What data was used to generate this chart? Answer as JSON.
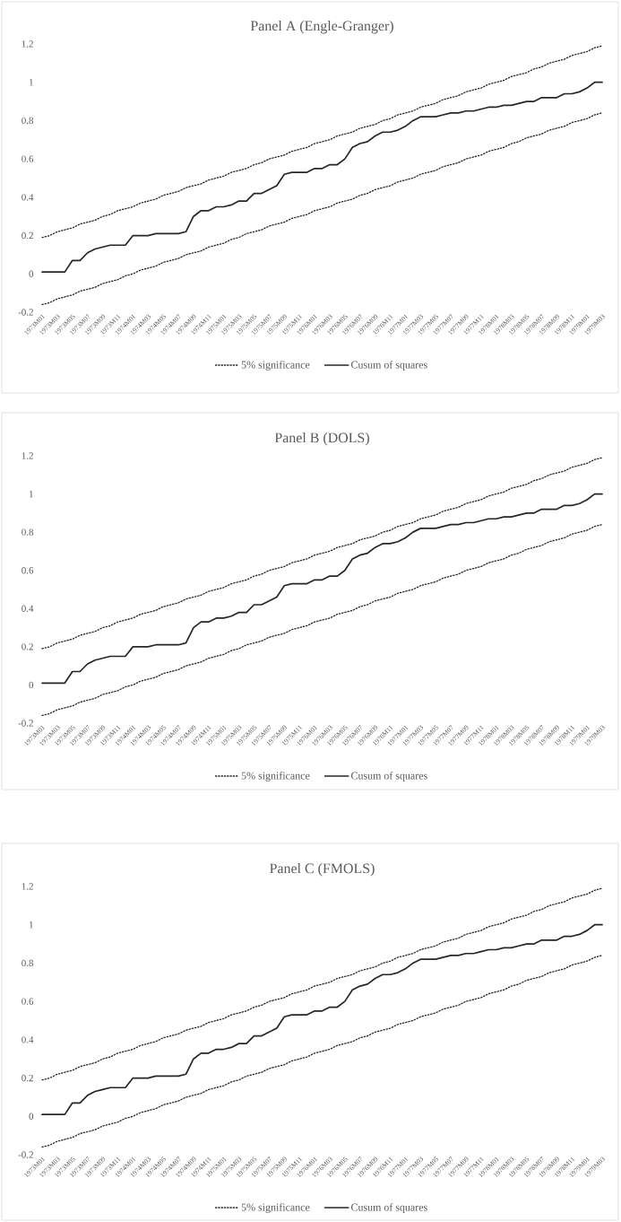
{
  "chart_data": [
    {
      "type": "line",
      "title": "Panel A (Engle-Granger)",
      "categories": [
        "1973M01",
        null,
        "1973M03",
        null,
        "1973M05",
        null,
        "1973M07",
        null,
        "1973M09",
        null,
        "1973M11",
        null,
        "1974M01",
        null,
        "1974M03",
        null,
        "1974M05",
        null,
        "1974M07",
        null,
        "1974M09",
        null,
        "1974M11",
        null,
        "1975M01",
        null,
        "1975M03",
        null,
        "1975M05",
        null,
        "1975M07",
        null,
        "1975M09",
        null,
        "1975M11",
        null,
        "1976M01",
        null,
        "1976M03",
        null,
        "1976M05",
        null,
        "1976M07",
        null,
        "1976M09",
        null,
        "1976M11",
        null,
        "1977M01",
        null,
        "1977M03",
        null,
        "1977M05",
        null,
        "1977M07",
        null,
        "1977M09",
        null,
        "1977M11",
        null,
        "1978M01",
        null,
        "1978M03",
        null,
        "1978M05",
        null,
        "1978M07",
        null,
        "1978M09",
        null,
        "1978M11",
        null,
        "1979M01",
        null,
        "1979M03"
      ],
      "series": [
        {
          "name": "5% significance",
          "color": "#262626",
          "line_style": "dotted",
          "values": [
            0.19,
            0.2,
            0.22,
            0.23,
            0.24,
            0.26,
            0.27,
            0.28,
            0.3,
            0.31,
            0.33,
            0.34,
            0.35,
            0.37,
            0.38,
            0.39,
            0.41,
            0.42,
            0.43,
            0.45,
            0.46,
            0.47,
            0.49,
            0.5,
            0.51,
            0.53,
            0.54,
            0.55,
            0.57,
            0.58,
            0.6,
            0.61,
            0.62,
            0.64,
            0.65,
            0.66,
            0.68,
            0.69,
            0.7,
            0.72,
            0.73,
            0.74,
            0.76,
            0.77,
            0.78,
            0.8,
            0.81,
            0.83,
            0.84,
            0.85,
            0.87,
            0.88,
            0.89,
            0.91,
            0.92,
            0.93,
            0.95,
            0.96,
            0.97,
            0.99,
            1.0,
            1.01,
            1.03,
            1.04,
            1.05,
            1.07,
            1.08,
            1.1,
            1.11,
            1.12,
            1.14,
            1.15,
            1.16,
            1.18,
            1.19
          ]
        },
        {
          "color": "#262626",
          "line_style": "dotted",
          "values": [
            -0.16,
            -0.15,
            -0.13,
            -0.12,
            -0.11,
            -0.09,
            -0.08,
            -0.07,
            -0.05,
            -0.04,
            -0.03,
            -0.01,
            0.0,
            0.02,
            0.03,
            0.04,
            0.06,
            0.07,
            0.08,
            0.1,
            0.11,
            0.12,
            0.14,
            0.15,
            0.16,
            0.18,
            0.19,
            0.21,
            0.22,
            0.23,
            0.25,
            0.26,
            0.27,
            0.29,
            0.3,
            0.31,
            0.33,
            0.34,
            0.35,
            0.37,
            0.38,
            0.39,
            0.41,
            0.42,
            0.44,
            0.45,
            0.46,
            0.48,
            0.49,
            0.5,
            0.52,
            0.53,
            0.54,
            0.56,
            0.57,
            0.58,
            0.6,
            0.61,
            0.62,
            0.64,
            0.65,
            0.66,
            0.68,
            0.69,
            0.71,
            0.72,
            0.73,
            0.75,
            0.76,
            0.77,
            0.79,
            0.8,
            0.81,
            0.83,
            0.84
          ]
        },
        {
          "name": "Cusum of squares",
          "color": "#262626",
          "line_style": "solid",
          "values": [
            0.01,
            0.01,
            0.01,
            0.01,
            0.07,
            0.07,
            0.11,
            0.13,
            0.14,
            0.15,
            0.15,
            0.15,
            0.2,
            0.2,
            0.2,
            0.21,
            0.21,
            0.21,
            0.21,
            0.22,
            0.3,
            0.33,
            0.33,
            0.35,
            0.35,
            0.36,
            0.38,
            0.38,
            0.42,
            0.42,
            0.44,
            0.46,
            0.52,
            0.53,
            0.53,
            0.53,
            0.55,
            0.55,
            0.57,
            0.57,
            0.6,
            0.66,
            0.68,
            0.69,
            0.72,
            0.74,
            0.74,
            0.75,
            0.77,
            0.8,
            0.82,
            0.82,
            0.82,
            0.83,
            0.84,
            0.84,
            0.85,
            0.85,
            0.86,
            0.87,
            0.87,
            0.88,
            0.88,
            0.89,
            0.9,
            0.9,
            0.92,
            0.92,
            0.92,
            0.94,
            0.94,
            0.95,
            0.97,
            1.0,
            1.0
          ]
        }
      ],
      "ylim": [
        -0.2,
        1.2
      ],
      "yticks": [
        -0.2,
        0,
        0.2,
        0.4,
        0.6,
        0.8,
        1,
        1.2
      ],
      "legend": "bottom"
    },
    {
      "type": "line",
      "title": "Panel B (DOLS)",
      "categories": [
        "1973M01",
        null,
        "1973M03",
        null,
        "1973M05",
        null,
        "1973M07",
        null,
        "1973M09",
        null,
        "1973M11",
        null,
        "1974M01",
        null,
        "1974M03",
        null,
        "1974M05",
        null,
        "1974M07",
        null,
        "1974M09",
        null,
        "1974M11",
        null,
        "1975M01",
        null,
        "1975M03",
        null,
        "1975M05",
        null,
        "1975M07",
        null,
        "1975M09",
        null,
        "1975M11",
        null,
        "1976M01",
        null,
        "1976M03",
        null,
        "1976M05",
        null,
        "1976M07",
        null,
        "1976M09",
        null,
        "1976M11",
        null,
        "1977M01",
        null,
        "1977M03",
        null,
        "1977M05",
        null,
        "1977M07",
        null,
        "1977M09",
        null,
        "1977M11",
        null,
        "1978M01",
        null,
        "1978M03",
        null,
        "1978M05",
        null,
        "1978M07",
        null,
        "1978M09",
        null,
        "1978M11",
        null,
        "1979M01",
        null,
        "1979M03"
      ],
      "series": [
        {
          "name": "5% significance",
          "color": "#262626",
          "line_style": "dotted",
          "values": [
            0.19,
            0.2,
            0.22,
            0.23,
            0.24,
            0.26,
            0.27,
            0.28,
            0.3,
            0.31,
            0.33,
            0.34,
            0.35,
            0.37,
            0.38,
            0.39,
            0.41,
            0.42,
            0.43,
            0.45,
            0.46,
            0.47,
            0.49,
            0.5,
            0.51,
            0.53,
            0.54,
            0.55,
            0.57,
            0.58,
            0.6,
            0.61,
            0.62,
            0.64,
            0.65,
            0.66,
            0.68,
            0.69,
            0.7,
            0.72,
            0.73,
            0.74,
            0.76,
            0.77,
            0.78,
            0.8,
            0.81,
            0.83,
            0.84,
            0.85,
            0.87,
            0.88,
            0.89,
            0.91,
            0.92,
            0.93,
            0.95,
            0.96,
            0.97,
            0.99,
            1.0,
            1.01,
            1.03,
            1.04,
            1.05,
            1.07,
            1.08,
            1.1,
            1.11,
            1.12,
            1.14,
            1.15,
            1.16,
            1.18,
            1.19
          ]
        },
        {
          "color": "#262626",
          "line_style": "dotted",
          "values": [
            -0.16,
            -0.15,
            -0.13,
            -0.12,
            -0.11,
            -0.09,
            -0.08,
            -0.07,
            -0.05,
            -0.04,
            -0.03,
            -0.01,
            0.0,
            0.02,
            0.03,
            0.04,
            0.06,
            0.07,
            0.08,
            0.1,
            0.11,
            0.12,
            0.14,
            0.15,
            0.16,
            0.18,
            0.19,
            0.21,
            0.22,
            0.23,
            0.25,
            0.26,
            0.27,
            0.29,
            0.3,
            0.31,
            0.33,
            0.34,
            0.35,
            0.37,
            0.38,
            0.39,
            0.41,
            0.42,
            0.44,
            0.45,
            0.46,
            0.48,
            0.49,
            0.5,
            0.52,
            0.53,
            0.54,
            0.56,
            0.57,
            0.58,
            0.6,
            0.61,
            0.62,
            0.64,
            0.65,
            0.66,
            0.68,
            0.69,
            0.71,
            0.72,
            0.73,
            0.75,
            0.76,
            0.77,
            0.79,
            0.8,
            0.81,
            0.83,
            0.84
          ]
        },
        {
          "name": "Cusum of squares",
          "color": "#262626",
          "line_style": "solid",
          "values": [
            0.01,
            0.01,
            0.01,
            0.01,
            0.07,
            0.07,
            0.11,
            0.13,
            0.14,
            0.15,
            0.15,
            0.15,
            0.2,
            0.2,
            0.2,
            0.21,
            0.21,
            0.21,
            0.21,
            0.22,
            0.3,
            0.33,
            0.33,
            0.35,
            0.35,
            0.36,
            0.38,
            0.38,
            0.42,
            0.42,
            0.44,
            0.46,
            0.52,
            0.53,
            0.53,
            0.53,
            0.55,
            0.55,
            0.57,
            0.57,
            0.6,
            0.66,
            0.68,
            0.69,
            0.72,
            0.74,
            0.74,
            0.75,
            0.77,
            0.8,
            0.82,
            0.82,
            0.82,
            0.83,
            0.84,
            0.84,
            0.85,
            0.85,
            0.86,
            0.87,
            0.87,
            0.88,
            0.88,
            0.89,
            0.9,
            0.9,
            0.92,
            0.92,
            0.92,
            0.94,
            0.94,
            0.95,
            0.97,
            1.0,
            1.0
          ]
        }
      ],
      "ylim": [
        -0.2,
        1.2
      ],
      "yticks": [
        -0.2,
        0,
        0.2,
        0.4,
        0.6,
        0.8,
        1,
        1.2
      ],
      "legend": "bottom"
    },
    {
      "type": "line",
      "title": "Panel C (FMOLS)",
      "categories": [
        "1973M01",
        null,
        "1973M03",
        null,
        "1973M05",
        null,
        "1973M07",
        null,
        "1973M09",
        null,
        "1973M11",
        null,
        "1974M01",
        null,
        "1974M03",
        null,
        "1974M05",
        null,
        "1974M07",
        null,
        "1974M09",
        null,
        "1974M11",
        null,
        "1975M01",
        null,
        "1975M03",
        null,
        "1975M05",
        null,
        "1975M07",
        null,
        "1975M09",
        null,
        "1975M11",
        null,
        "1976M01",
        null,
        "1976M03",
        null,
        "1976M05",
        null,
        "1976M07",
        null,
        "1976M09",
        null,
        "1976M11",
        null,
        "1977M01",
        null,
        "1977M03",
        null,
        "1977M05",
        null,
        "1977M07",
        null,
        "1977M09",
        null,
        "1977M11",
        null,
        "1978M01",
        null,
        "1978M03",
        null,
        "1978M05",
        null,
        "1978M07",
        null,
        "1978M09",
        null,
        "1978M11",
        null,
        "1979M01",
        null,
        "1979M03"
      ],
      "series": [
        {
          "name": "5% significance",
          "color": "#262626",
          "line_style": "dotted",
          "values": [
            0.19,
            0.2,
            0.22,
            0.23,
            0.24,
            0.26,
            0.27,
            0.28,
            0.3,
            0.31,
            0.33,
            0.34,
            0.35,
            0.37,
            0.38,
            0.39,
            0.41,
            0.42,
            0.43,
            0.45,
            0.46,
            0.47,
            0.49,
            0.5,
            0.51,
            0.53,
            0.54,
            0.55,
            0.57,
            0.58,
            0.6,
            0.61,
            0.62,
            0.64,
            0.65,
            0.66,
            0.68,
            0.69,
            0.7,
            0.72,
            0.73,
            0.74,
            0.76,
            0.77,
            0.78,
            0.8,
            0.81,
            0.83,
            0.84,
            0.85,
            0.87,
            0.88,
            0.89,
            0.91,
            0.92,
            0.93,
            0.95,
            0.96,
            0.97,
            0.99,
            1.0,
            1.01,
            1.03,
            1.04,
            1.05,
            1.07,
            1.08,
            1.1,
            1.11,
            1.12,
            1.14,
            1.15,
            1.16,
            1.18,
            1.19
          ]
        },
        {
          "color": "#262626",
          "line_style": "dotted",
          "values": [
            -0.16,
            -0.15,
            -0.13,
            -0.12,
            -0.11,
            -0.09,
            -0.08,
            -0.07,
            -0.05,
            -0.04,
            -0.03,
            -0.01,
            0.0,
            0.02,
            0.03,
            0.04,
            0.06,
            0.07,
            0.08,
            0.1,
            0.11,
            0.12,
            0.14,
            0.15,
            0.16,
            0.18,
            0.19,
            0.21,
            0.22,
            0.23,
            0.25,
            0.26,
            0.27,
            0.29,
            0.3,
            0.31,
            0.33,
            0.34,
            0.35,
            0.37,
            0.38,
            0.39,
            0.41,
            0.42,
            0.44,
            0.45,
            0.46,
            0.48,
            0.49,
            0.5,
            0.52,
            0.53,
            0.54,
            0.56,
            0.57,
            0.58,
            0.6,
            0.61,
            0.62,
            0.64,
            0.65,
            0.66,
            0.68,
            0.69,
            0.71,
            0.72,
            0.73,
            0.75,
            0.76,
            0.77,
            0.79,
            0.8,
            0.81,
            0.83,
            0.84
          ]
        },
        {
          "name": "Cusum of squares",
          "color": "#262626",
          "line_style": "solid",
          "values": [
            0.01,
            0.01,
            0.01,
            0.01,
            0.07,
            0.07,
            0.11,
            0.13,
            0.14,
            0.15,
            0.15,
            0.15,
            0.2,
            0.2,
            0.2,
            0.21,
            0.21,
            0.21,
            0.21,
            0.22,
            0.3,
            0.33,
            0.33,
            0.35,
            0.35,
            0.36,
            0.38,
            0.38,
            0.42,
            0.42,
            0.44,
            0.46,
            0.52,
            0.53,
            0.53,
            0.53,
            0.55,
            0.55,
            0.57,
            0.57,
            0.6,
            0.66,
            0.68,
            0.69,
            0.72,
            0.74,
            0.74,
            0.75,
            0.77,
            0.8,
            0.82,
            0.82,
            0.82,
            0.83,
            0.84,
            0.84,
            0.85,
            0.85,
            0.86,
            0.87,
            0.87,
            0.88,
            0.88,
            0.89,
            0.9,
            0.9,
            0.92,
            0.92,
            0.92,
            0.94,
            0.94,
            0.95,
            0.97,
            1.0,
            1.0
          ]
        }
      ],
      "ylim": [
        -0.2,
        1.2
      ],
      "yticks": [
        -0.2,
        0,
        0.2,
        0.4,
        0.6,
        0.8,
        1,
        1.2
      ],
      "legend": "bottom"
    }
  ]
}
